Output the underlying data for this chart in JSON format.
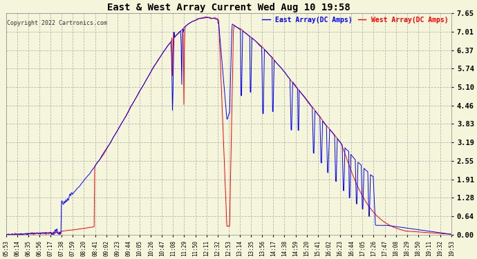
{
  "title": "East & West Array Current Wed Aug 10 19:58",
  "copyright": "Copyright 2022 Cartronics.com",
  "legend_east": "East Array(DC Amps)",
  "legend_west": "West Array(DC Amps)",
  "east_color": "#0000ff",
  "west_color": "#ff0000",
  "bg_color": "#f5f5dc",
  "grid_color": "#b0b0b0",
  "ylim": [
    0.0,
    7.65
  ],
  "yticks": [
    0.0,
    0.64,
    1.28,
    1.91,
    2.55,
    3.19,
    3.83,
    4.46,
    5.1,
    5.74,
    6.37,
    7.01,
    7.65
  ],
  "xtick_labels": [
    "05:53",
    "06:14",
    "06:35",
    "06:56",
    "07:17",
    "07:38",
    "07:59",
    "08:20",
    "08:41",
    "09:02",
    "09:23",
    "09:44",
    "10:05",
    "10:26",
    "10:47",
    "11:08",
    "11:29",
    "11:50",
    "12:11",
    "12:32",
    "12:53",
    "13:14",
    "13:35",
    "13:56",
    "14:17",
    "14:38",
    "14:59",
    "15:20",
    "15:41",
    "16:02",
    "16:23",
    "16:44",
    "17:05",
    "17:26",
    "17:47",
    "18:08",
    "18:29",
    "18:50",
    "19:11",
    "19:32",
    "19:53"
  ],
  "n_points": 820
}
